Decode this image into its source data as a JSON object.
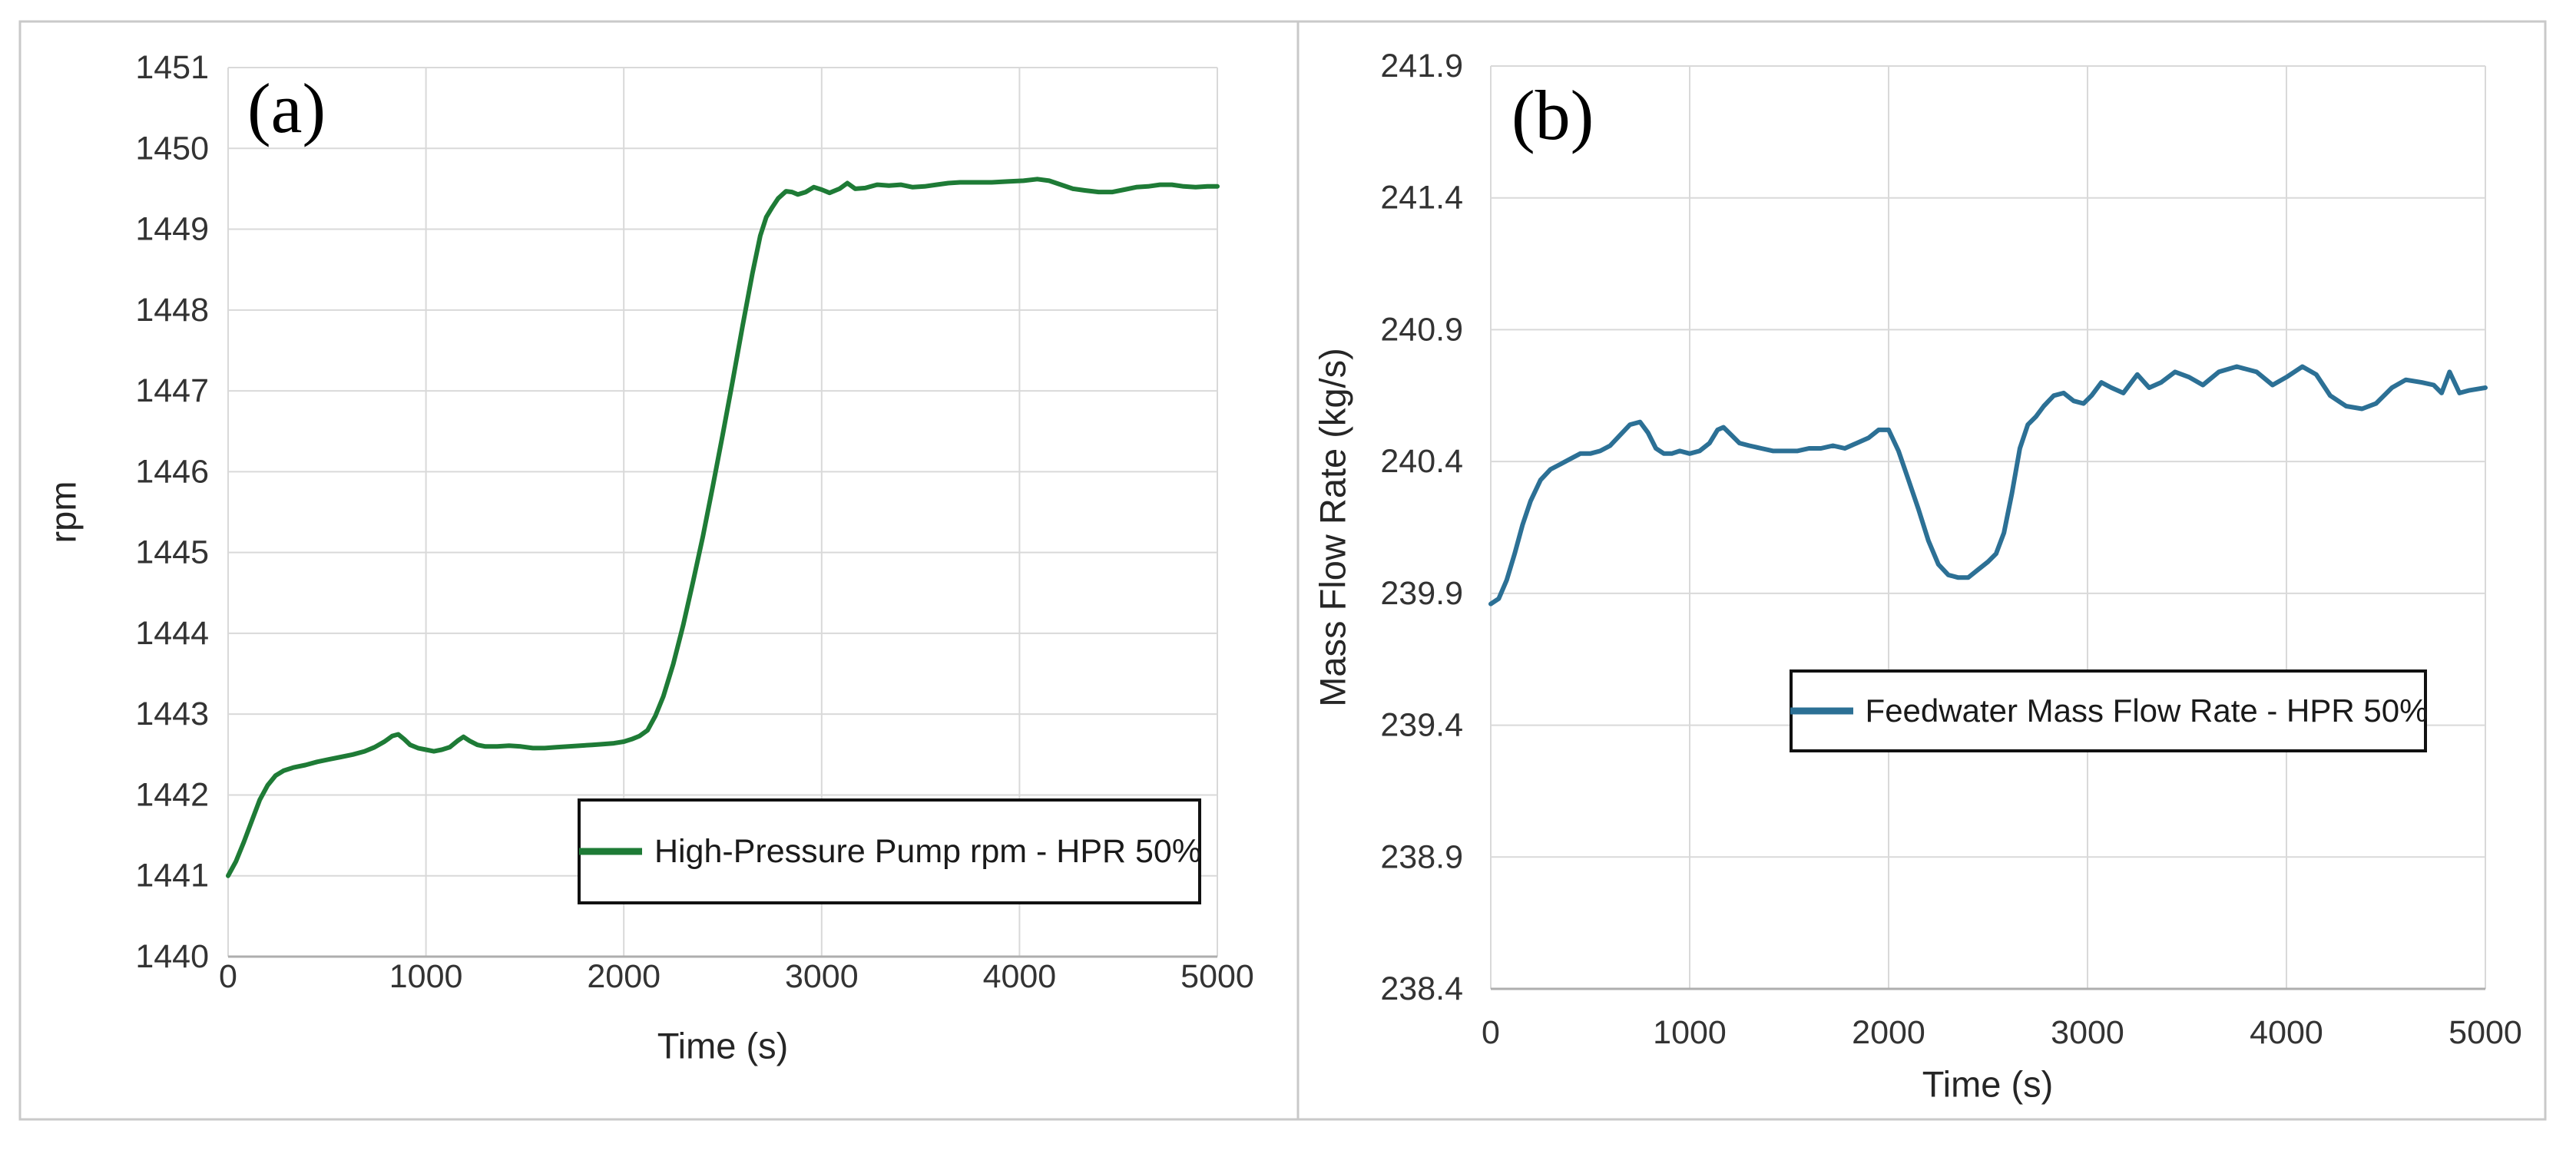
{
  "frame": {
    "border_color": "#c9c9c9",
    "divider_color": "#c9c9c9"
  },
  "chart_data": [
    {
      "type": "line",
      "panel_label": "(a)",
      "xlabel": "Time (s)",
      "ylabel": "rpm",
      "xlim": [
        0,
        5000
      ],
      "ylim": [
        1440,
        1451
      ],
      "xticks": [
        0,
        1000,
        2000,
        3000,
        4000,
        5000
      ],
      "xtick_labels": [
        "0",
        "1000",
        "2000",
        "3000",
        "4000",
        "5000"
      ],
      "ytick_values": [
        1440,
        1441,
        1442,
        1443,
        1444,
        1445,
        1446,
        1447,
        1448,
        1449,
        1450,
        1451
      ],
      "ytick_labels": [
        "1440",
        "1441",
        "1442",
        "1443",
        "1444",
        "1445",
        "1446",
        "1447",
        "1448",
        "1449",
        "1450",
        "1451"
      ],
      "grid": true,
      "gridline_color": "#d9d9d9",
      "axis_line_color": "#aeaeae",
      "legend_position": "inside-bottom-right",
      "series": [
        {
          "name": "High-Pressure Pump rpm - HPR 50%",
          "color": "#1E7B36",
          "points": [
            [
              0,
              1441.0
            ],
            [
              40,
              1441.18
            ],
            [
              80,
              1441.42
            ],
            [
              120,
              1441.68
            ],
            [
              160,
              1441.94
            ],
            [
              200,
              1442.12
            ],
            [
              240,
              1442.24
            ],
            [
              280,
              1442.3
            ],
            [
              330,
              1442.34
            ],
            [
              390,
              1442.37
            ],
            [
              450,
              1442.41
            ],
            [
              510,
              1442.44
            ],
            [
              570,
              1442.47
            ],
            [
              630,
              1442.5
            ],
            [
              690,
              1442.54
            ],
            [
              740,
              1442.59
            ],
            [
              790,
              1442.66
            ],
            [
              830,
              1442.73
            ],
            [
              860,
              1442.75
            ],
            [
              890,
              1442.69
            ],
            [
              920,
              1442.62
            ],
            [
              960,
              1442.58
            ],
            [
              1000,
              1442.56
            ],
            [
              1040,
              1442.54
            ],
            [
              1080,
              1442.56
            ],
            [
              1120,
              1442.59
            ],
            [
              1160,
              1442.67
            ],
            [
              1190,
              1442.72
            ],
            [
              1220,
              1442.67
            ],
            [
              1260,
              1442.62
            ],
            [
              1300,
              1442.6
            ],
            [
              1360,
              1442.6
            ],
            [
              1420,
              1442.61
            ],
            [
              1480,
              1442.6
            ],
            [
              1540,
              1442.58
            ],
            [
              1600,
              1442.58
            ],
            [
              1660,
              1442.59
            ],
            [
              1720,
              1442.6
            ],
            [
              1780,
              1442.61
            ],
            [
              1840,
              1442.62
            ],
            [
              1900,
              1442.63
            ],
            [
              1950,
              1442.64
            ],
            [
              2000,
              1442.66
            ],
            [
              2040,
              1442.69
            ],
            [
              2080,
              1442.73
            ],
            [
              2120,
              1442.8
            ],
            [
              2160,
              1442.98
            ],
            [
              2200,
              1443.22
            ],
            [
              2250,
              1443.62
            ],
            [
              2300,
              1444.1
            ],
            [
              2350,
              1444.64
            ],
            [
              2400,
              1445.2
            ],
            [
              2450,
              1445.82
            ],
            [
              2500,
              1446.46
            ],
            [
              2550,
              1447.12
            ],
            [
              2600,
              1447.8
            ],
            [
              2650,
              1448.45
            ],
            [
              2690,
              1448.92
            ],
            [
              2720,
              1449.15
            ],
            [
              2750,
              1449.27
            ],
            [
              2780,
              1449.38
            ],
            [
              2820,
              1449.47
            ],
            [
              2850,
              1449.46
            ],
            [
              2880,
              1449.43
            ],
            [
              2920,
              1449.46
            ],
            [
              2960,
              1449.52
            ],
            [
              3000,
              1449.49
            ],
            [
              3040,
              1449.45
            ],
            [
              3090,
              1449.5
            ],
            [
              3130,
              1449.57
            ],
            [
              3170,
              1449.5
            ],
            [
              3220,
              1449.51
            ],
            [
              3280,
              1449.55
            ],
            [
              3340,
              1449.54
            ],
            [
              3400,
              1449.55
            ],
            [
              3460,
              1449.52
            ],
            [
              3520,
              1449.53
            ],
            [
              3580,
              1449.55
            ],
            [
              3640,
              1449.57
            ],
            [
              3700,
              1449.58
            ],
            [
              3780,
              1449.58
            ],
            [
              3860,
              1449.58
            ],
            [
              3940,
              1449.59
            ],
            [
              4020,
              1449.6
            ],
            [
              4090,
              1449.62
            ],
            [
              4150,
              1449.6
            ],
            [
              4210,
              1449.55
            ],
            [
              4270,
              1449.5
            ],
            [
              4330,
              1449.48
            ],
            [
              4400,
              1449.46
            ],
            [
              4470,
              1449.46
            ],
            [
              4530,
              1449.49
            ],
            [
              4590,
              1449.52
            ],
            [
              4650,
              1449.53
            ],
            [
              4710,
              1449.55
            ],
            [
              4770,
              1449.55
            ],
            [
              4830,
              1449.53
            ],
            [
              4890,
              1449.52
            ],
            [
              4950,
              1449.53
            ],
            [
              5000,
              1449.53
            ]
          ]
        }
      ]
    },
    {
      "type": "line",
      "panel_label": "(b)",
      "xlabel": "Time (s)",
      "ylabel": "Mass Flow Rate (kg/s)",
      "xlim": [
        0,
        5000
      ],
      "ylim": [
        238.4,
        241.9
      ],
      "xticks": [
        0,
        1000,
        2000,
        3000,
        4000,
        5000
      ],
      "xtick_labels": [
        "0",
        "1000",
        "2000",
        "3000",
        "4000",
        "5000"
      ],
      "ytick_values": [
        238.4,
        238.9,
        239.4,
        239.9,
        240.4,
        240.9,
        241.4,
        241.9
      ],
      "ytick_labels": [
        "238.4",
        "238.9",
        "239.4",
        "239.9",
        "240.4",
        "240.9",
        "241.4",
        "241.9"
      ],
      "grid": true,
      "gridline_color": "#d9d9d9",
      "axis_line_color": "#aeaeae",
      "legend_position": "inside-middle-right",
      "series": [
        {
          "name": "Feedwater Mass Flow Rate - HPR 50%",
          "color": "#2C7095",
          "points": [
            [
              0,
              239.86
            ],
            [
              40,
              239.88
            ],
            [
              80,
              239.95
            ],
            [
              120,
              240.05
            ],
            [
              160,
              240.16
            ],
            [
              200,
              240.25
            ],
            [
              250,
              240.33
            ],
            [
              300,
              240.37
            ],
            [
              350,
              240.39
            ],
            [
              400,
              240.41
            ],
            [
              450,
              240.43
            ],
            [
              500,
              240.43
            ],
            [
              550,
              240.44
            ],
            [
              600,
              240.46
            ],
            [
              650,
              240.5
            ],
            [
              700,
              240.54
            ],
            [
              750,
              240.55
            ],
            [
              790,
              240.51
            ],
            [
              830,
              240.45
            ],
            [
              870,
              240.43
            ],
            [
              910,
              240.43
            ],
            [
              950,
              240.44
            ],
            [
              1000,
              240.43
            ],
            [
              1050,
              240.44
            ],
            [
              1100,
              240.47
            ],
            [
              1140,
              240.52
            ],
            [
              1170,
              240.53
            ],
            [
              1210,
              240.5
            ],
            [
              1250,
              240.47
            ],
            [
              1300,
              240.46
            ],
            [
              1360,
              240.45
            ],
            [
              1420,
              240.44
            ],
            [
              1480,
              240.44
            ],
            [
              1540,
              240.44
            ],
            [
              1600,
              240.45
            ],
            [
              1660,
              240.45
            ],
            [
              1720,
              240.46
            ],
            [
              1780,
              240.45
            ],
            [
              1840,
              240.47
            ],
            [
              1900,
              240.49
            ],
            [
              1950,
              240.52
            ],
            [
              2000,
              240.52
            ],
            [
              2050,
              240.44
            ],
            [
              2100,
              240.33
            ],
            [
              2150,
              240.22
            ],
            [
              2200,
              240.1
            ],
            [
              2250,
              240.01
            ],
            [
              2300,
              239.97
            ],
            [
              2350,
              239.96
            ],
            [
              2400,
              239.96
            ],
            [
              2450,
              239.99
            ],
            [
              2500,
              240.02
            ],
            [
              2540,
              240.05
            ],
            [
              2580,
              240.13
            ],
            [
              2620,
              240.28
            ],
            [
              2660,
              240.45
            ],
            [
              2700,
              240.54
            ],
            [
              2740,
              240.57
            ],
            [
              2780,
              240.61
            ],
            [
              2830,
              240.65
            ],
            [
              2880,
              240.66
            ],
            [
              2930,
              240.63
            ],
            [
              2980,
              240.62
            ],
            [
              3020,
              240.65
            ],
            [
              3070,
              240.7
            ],
            [
              3120,
              240.68
            ],
            [
              3180,
              240.66
            ],
            [
              3250,
              240.73
            ],
            [
              3310,
              240.68
            ],
            [
              3370,
              240.7
            ],
            [
              3440,
              240.74
            ],
            [
              3510,
              240.72
            ],
            [
              3580,
              240.69
            ],
            [
              3660,
              240.74
            ],
            [
              3750,
              240.76
            ],
            [
              3850,
              240.74
            ],
            [
              3930,
              240.69
            ],
            [
              4000,
              240.72
            ],
            [
              4080,
              240.76
            ],
            [
              4150,
              240.73
            ],
            [
              4220,
              240.65
            ],
            [
              4300,
              240.61
            ],
            [
              4380,
              240.6
            ],
            [
              4450,
              240.62
            ],
            [
              4530,
              240.68
            ],
            [
              4600,
              240.71
            ],
            [
              4680,
              240.7
            ],
            [
              4740,
              240.69
            ],
            [
              4780,
              240.66
            ],
            [
              4820,
              240.74
            ],
            [
              4870,
              240.66
            ],
            [
              4920,
              240.67
            ],
            [
              5000,
              240.68
            ]
          ]
        }
      ]
    }
  ]
}
